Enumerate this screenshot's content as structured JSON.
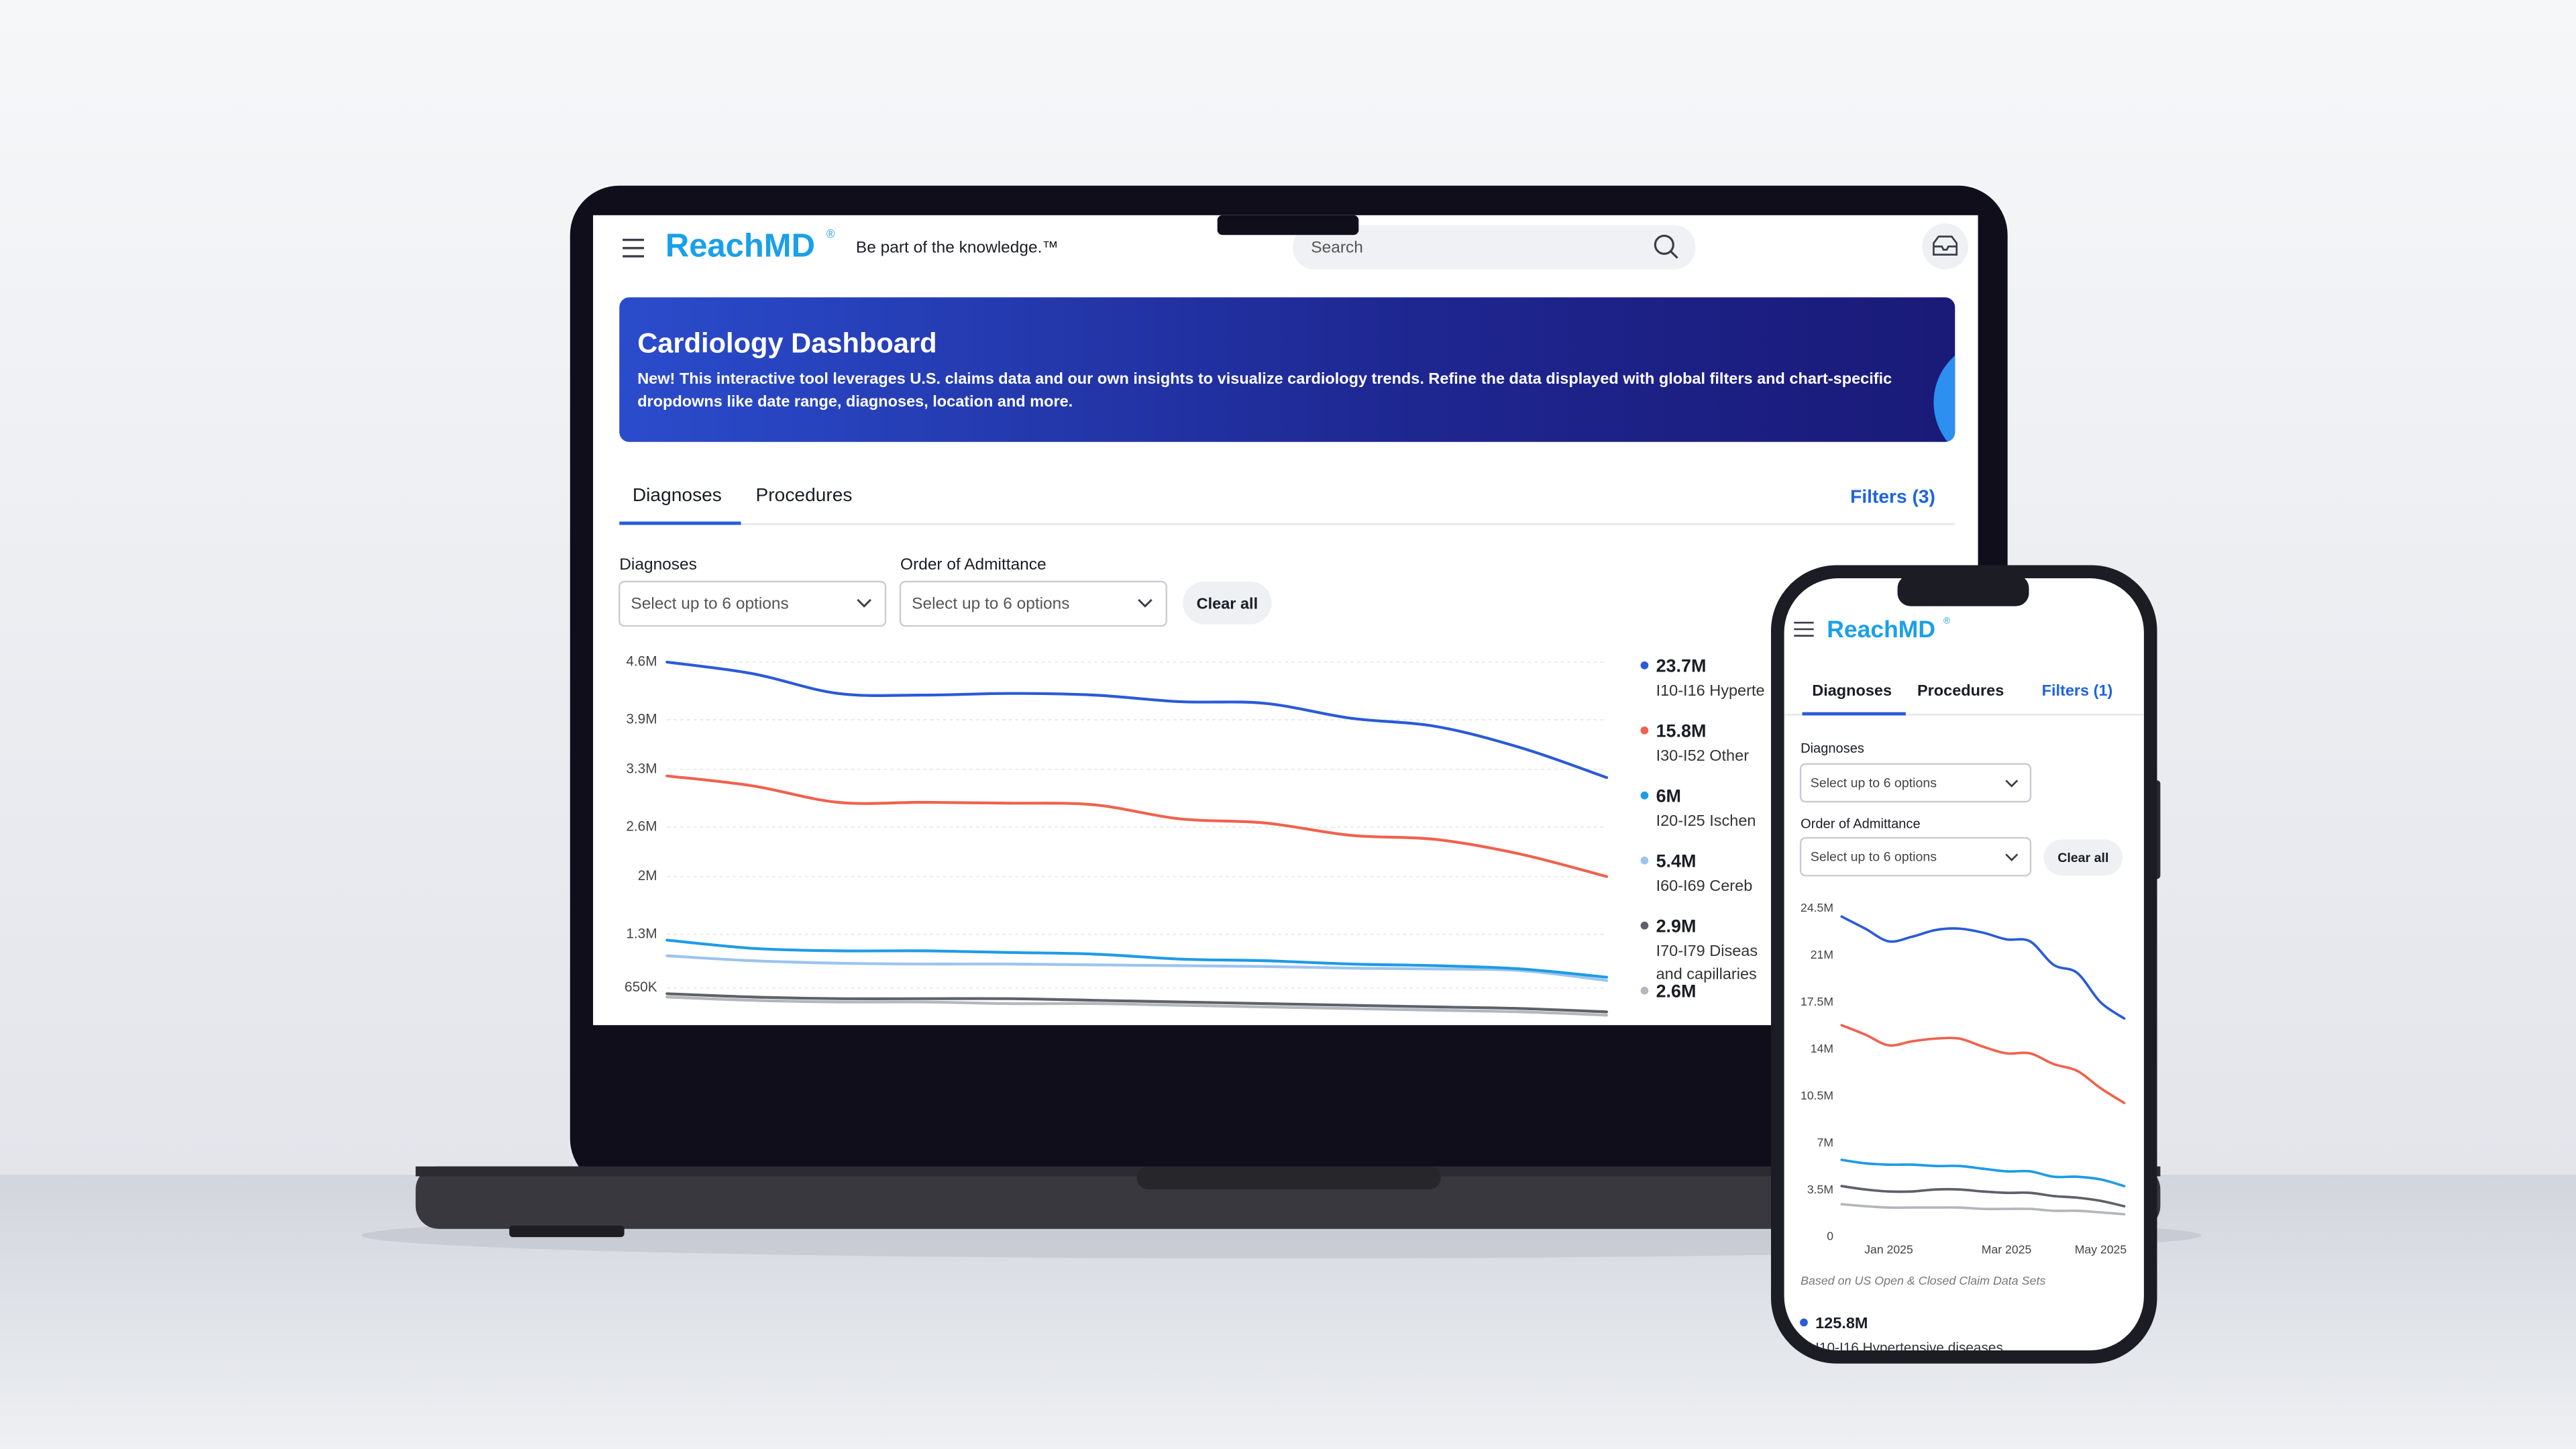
{
  "laptop": {
    "logo": "ReachMD",
    "logo_mark": "®",
    "tagline": "Be part of the knowledge.™",
    "search": "Search",
    "banner": {
      "title": "Cardiology Dashboard",
      "lines": [
        "New! This interactive tool leverages U.S. claims data and our own insights to visualize cardiology trends. Refine the data displayed with global filters and chart-specific",
        "dropdowns like date range, diagnoses, location and more."
      ]
    },
    "tabs": [
      "Diagnoses",
      "Procedures"
    ],
    "filters": "Filters (3)",
    "controls": [
      {
        "label": "Diagnoses",
        "placeholder": "Select up to 6 options"
      },
      {
        "label": "Order of Admittance",
        "placeholder": "Select up to 6 options"
      }
    ],
    "clear": "Clear all"
  },
  "phone": {
    "logo": "ReachMD",
    "logo_mark": "®",
    "tabs": [
      "Diagnoses",
      "Procedures"
    ],
    "filters": "Filters (1)",
    "controls": [
      {
        "label": "Diagnoses",
        "placeholder": "Select up to 6 options"
      },
      {
        "label": "Order of Admittance",
        "placeholder": "Select up to 6 options"
      }
    ],
    "clear": "Clear all",
    "note": "Based on US Open & Closed Claim Data Sets"
  },
  "chart_data": [
    {
      "type": "line",
      "categories": [
        null,
        null,
        null,
        null,
        null,
        null,
        null,
        null,
        null,
        null,
        null,
        null
      ],
      "ylim": [
        0,
        4600000
      ],
      "yticks": [
        {
          "value": 650000,
          "label": "650K"
        },
        {
          "value": 1300000,
          "label": "1.3M"
        },
        {
          "value": 2000000,
          "label": "2M"
        },
        {
          "value": 2600000,
          "label": "2.6M"
        },
        {
          "value": 3300000,
          "label": "3.3M"
        },
        {
          "value": 3900000,
          "label": "3.9M"
        },
        {
          "value": 4600000,
          "label": "4.6M"
        }
      ],
      "grid": true,
      "series": [
        {
          "name": "I10-I16 Hyperte",
          "total_label": "23.7M",
          "color": "#2a5bd7",
          "values": [
            4600000,
            4460000,
            4220000,
            4200000,
            4220000,
            4200000,
            4120000,
            4100000,
            3920000,
            3820000,
            3560000,
            3200000
          ]
        },
        {
          "name": "I30-I52 Other",
          "total_label": "15.8M",
          "color": "#f0624d",
          "values": [
            3220000,
            3100000,
            2900000,
            2900000,
            2890000,
            2870000,
            2700000,
            2650000,
            2500000,
            2450000,
            2270000,
            2000000
          ]
        },
        {
          "name": "I20-I25 Ischen",
          "total_label": "6M",
          "color": "#1e9be6",
          "values": [
            1230000,
            1130000,
            1100000,
            1100000,
            1080000,
            1060000,
            1000000,
            980000,
            940000,
            920000,
            880000,
            780000
          ]
        },
        {
          "name": "I60-I69 Cereb",
          "total_label": "5.4M",
          "color": "#9cc4ee",
          "values": [
            1040000,
            980000,
            950000,
            940000,
            940000,
            930000,
            920000,
            910000,
            890000,
            880000,
            860000,
            740000
          ]
        },
        {
          "name": [
            "I70-I79 Diseas",
            "and capillaries"
          ],
          "total_label": "2.9M",
          "color": "#5f6169",
          "values": [
            580000,
            540000,
            520000,
            520000,
            520000,
            500000,
            480000,
            460000,
            440000,
            420000,
            400000,
            360000
          ]
        },
        {
          "total_label": "2.6M",
          "color": "#b4b6bd",
          "values": [
            540000,
            500000,
            480000,
            480000,
            460000,
            460000,
            440000,
            420000,
            400000,
            380000,
            360000,
            320000
          ]
        }
      ]
    },
    {
      "type": "line",
      "categories": [
        null,
        null,
        "Jan 2025",
        null,
        null,
        null,
        null,
        "Mar 2025",
        null,
        null,
        null,
        "May 2025",
        null
      ],
      "ylim": [
        0,
        24500000
      ],
      "yticks": [
        0,
        {
          "value": 3500000,
          "label": "3.5M"
        },
        {
          "value": 7000000,
          "label": "7M"
        },
        {
          "value": 10500000,
          "label": "10.5M"
        },
        {
          "value": 14000000,
          "label": "14M"
        },
        {
          "value": 17500000,
          "label": "17.5M"
        },
        {
          "value": 21000000,
          "label": "21M"
        },
        {
          "value": 24500000,
          "label": "24.5M"
        }
      ],
      "grid": false,
      "series": [
        {
          "name": "I10-I16 Hypertensive diseases",
          "total_label": "125.8M",
          "color": "#2a5bd7",
          "values": [
            23900000,
            23000000,
            22050000,
            22400000,
            22900000,
            23000000,
            22700000,
            22200000,
            22050000,
            20300000,
            19700000,
            17500000,
            16300000
          ]
        },
        {
          "color": "#f0624d",
          "values": [
            15800000,
            15100000,
            14300000,
            14600000,
            14800000,
            14800000,
            14200000,
            13700000,
            13700000,
            12900000,
            12400000,
            11100000,
            10000000
          ]
        },
        {
          "color": "#1e9be6",
          "values": [
            5760000,
            5500000,
            5400000,
            5400000,
            5300000,
            5300000,
            5100000,
            4900000,
            4900000,
            4500000,
            4500000,
            4300000,
            3800000
          ]
        },
        {
          "color": "#5f6169",
          "values": [
            3800000,
            3550000,
            3400000,
            3400000,
            3550000,
            3550000,
            3400000,
            3300000,
            3300000,
            3060000,
            2940000,
            2700000,
            2300000
          ]
        },
        {
          "color": "#b4b6bd",
          "values": [
            2450000,
            2300000,
            2200000,
            2200000,
            2200000,
            2200000,
            2100000,
            2100000,
            2100000,
            1960000,
            1960000,
            1840000,
            1700000
          ]
        }
      ]
    }
  ]
}
